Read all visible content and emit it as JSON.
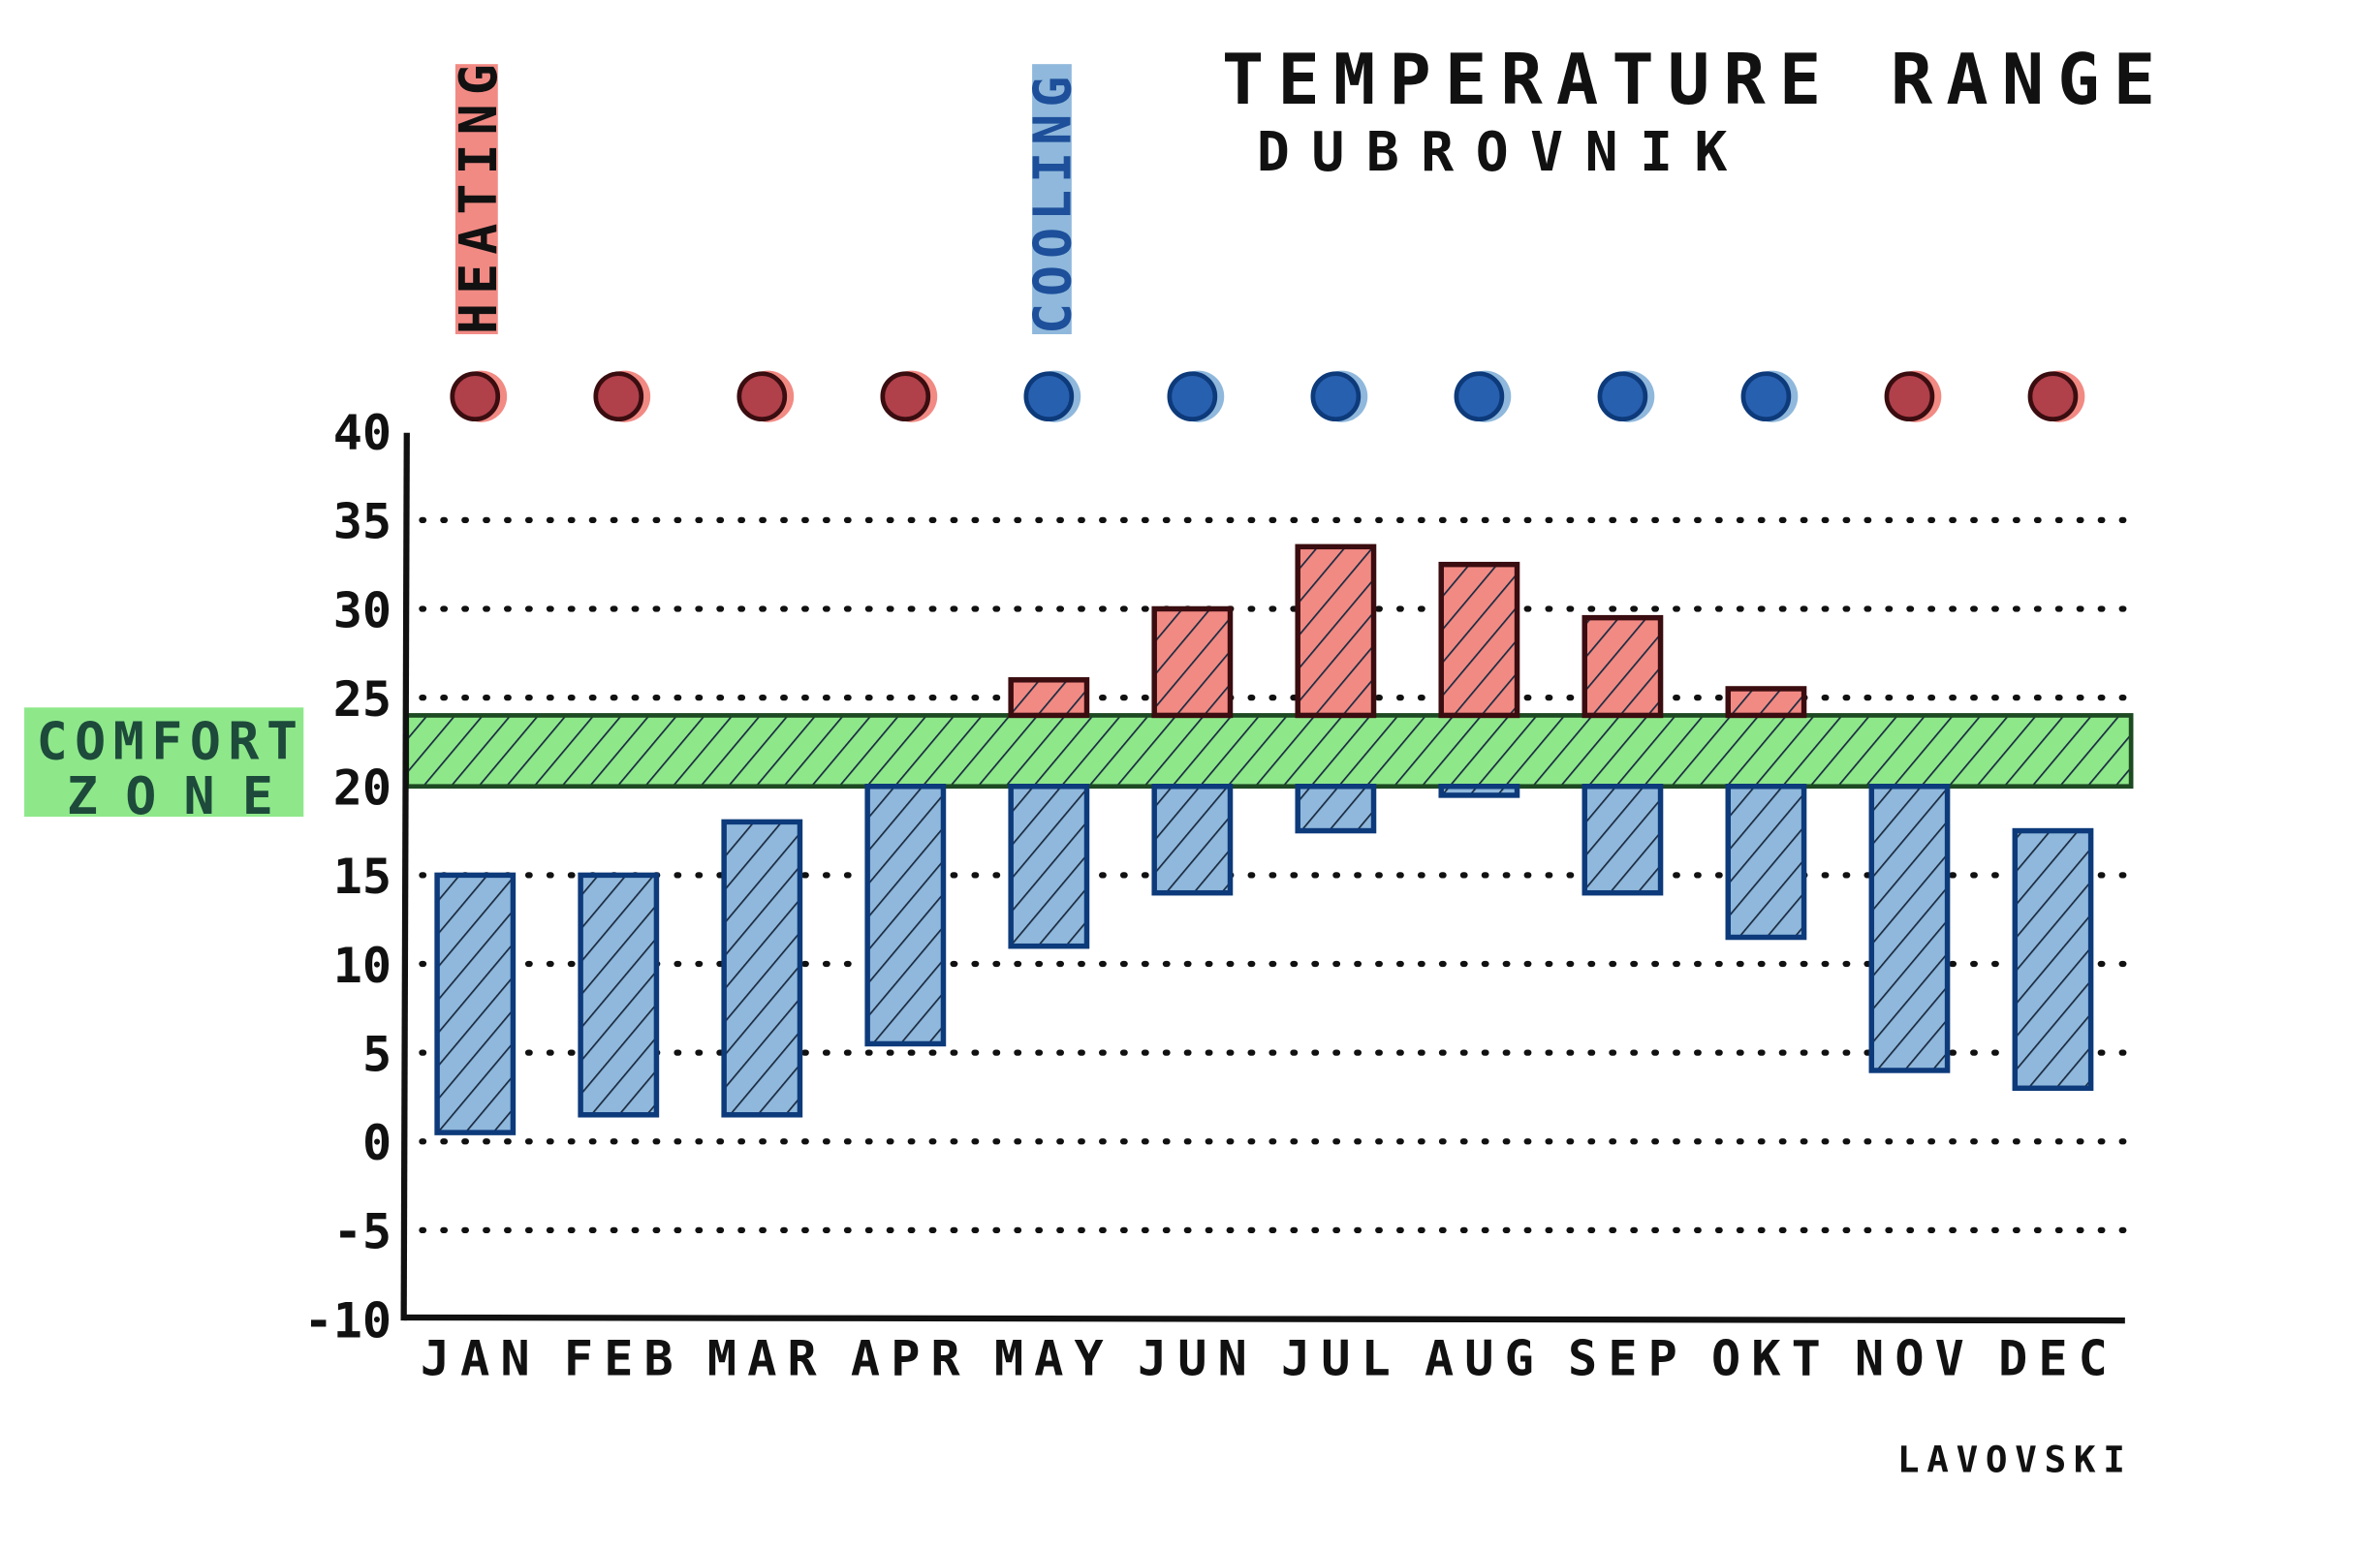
{
  "chart_data": {
    "type": "bar",
    "subtype": "floating-range",
    "title": "TEMPERATURE RANGE",
    "subtitle": "DUBROVNIK",
    "signature": "LAVOVSKI",
    "xlabel": "",
    "ylabel": "",
    "ylim": [
      -10,
      40
    ],
    "yticks": [
      40,
      35,
      30,
      25,
      20,
      15,
      10,
      5,
      0,
      -5,
      -10
    ],
    "grid": "dotted horizontal",
    "categories": [
      "JAN",
      "FEB",
      "MAR",
      "APR",
      "MAY",
      "JUN",
      "JUL",
      "AUG",
      "SEP",
      "OKT",
      "NOV",
      "DEC"
    ],
    "min": [
      0.5,
      1.5,
      1.5,
      5.5,
      11,
      14,
      17.5,
      19.5,
      14,
      11.5,
      4,
      3
    ],
    "max": [
      15,
      15,
      18,
      20,
      26,
      30,
      33.5,
      32.5,
      29.5,
      25.5,
      20,
      17.5
    ],
    "mode": [
      "heating",
      "heating",
      "heating",
      "heating",
      "cooling",
      "cooling",
      "cooling",
      "cooling",
      "cooling",
      "cooling",
      "heating",
      "heating"
    ],
    "comfort_zone": {
      "label_line1": "COMFORT",
      "label_line2": "ZONE",
      "range": [
        20,
        24
      ]
    },
    "legend": {
      "heating": "HEATING",
      "cooling": "COOLING",
      "placement": "top-left"
    },
    "colors": {
      "cold": "#8fb8dc",
      "cold_stroke": "#0d3a7a",
      "hot": "#f28a84",
      "hot_stroke": "#3a0d10",
      "comfort": "#8ee88a",
      "comfort_stroke": "#1d4a22",
      "heating_dot": "#b0404a",
      "cooling_dot": "#2860b0"
    }
  }
}
